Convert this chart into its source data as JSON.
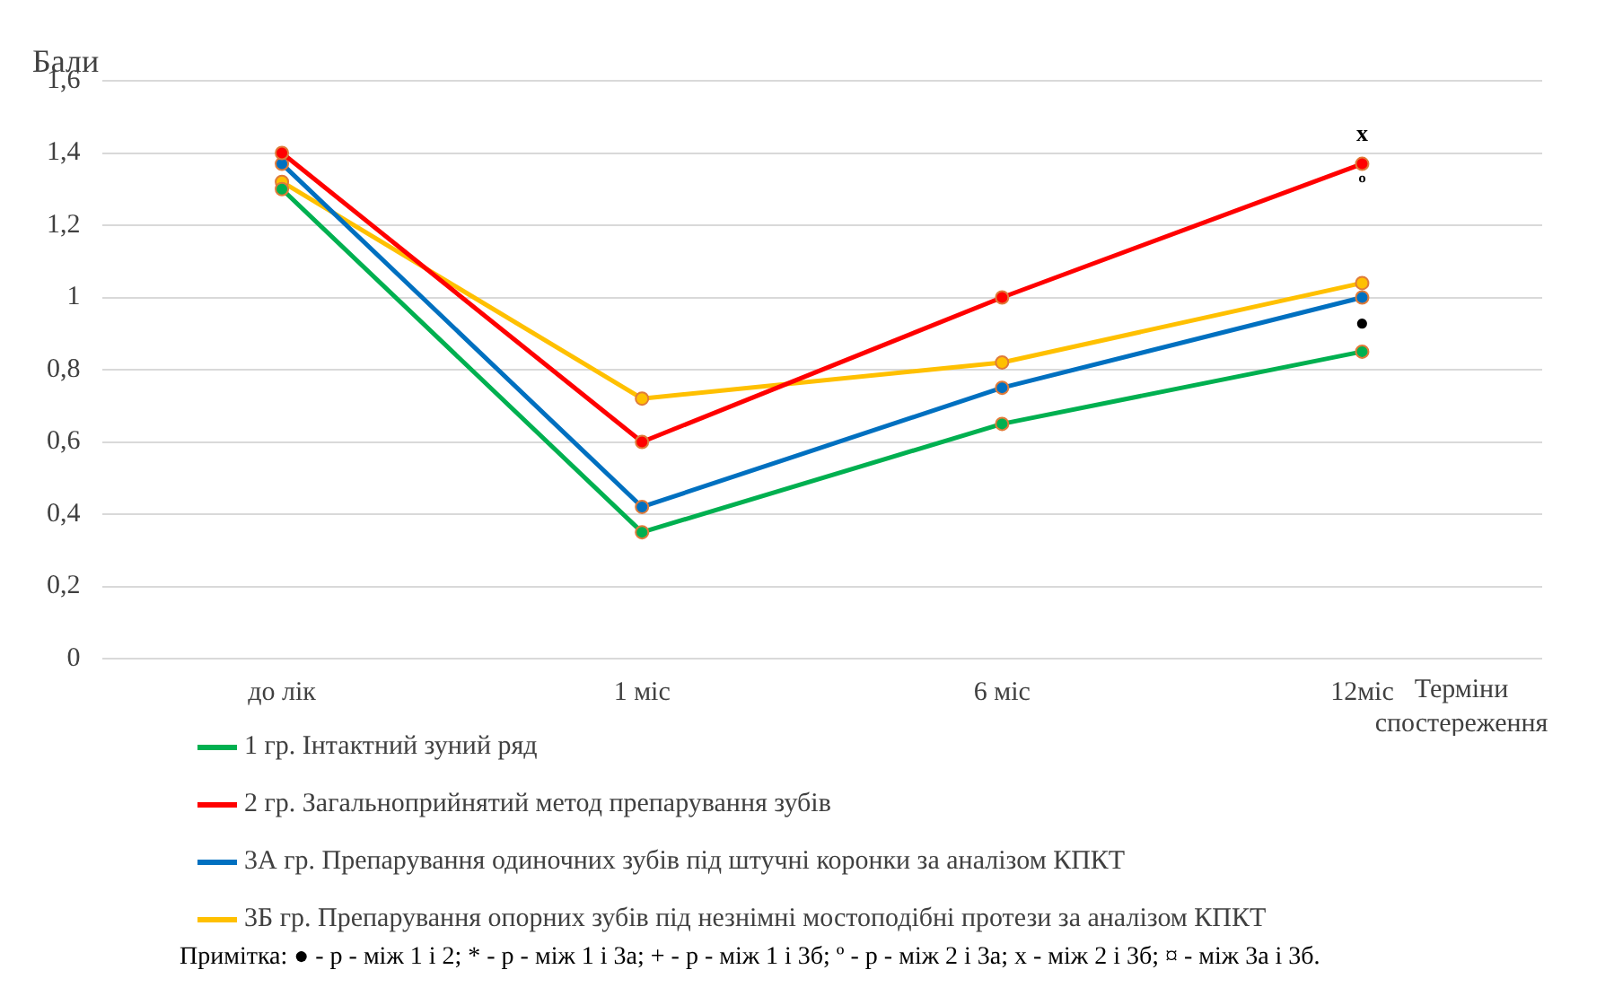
{
  "chart_data": {
    "type": "line",
    "ylabel": "Бали",
    "xlabel": "Терміни спостереження",
    "categories": [
      "до лік",
      "1 міс",
      "6 міс",
      "12міс"
    ],
    "series": [
      {
        "name": "1 гр. Інтактний зуний ряд",
        "color": "#00b050",
        "values": [
          1.3,
          0.35,
          0.65,
          0.85
        ]
      },
      {
        "name": "2 гр. Загальноприйнятий метод препарування зубів",
        "color": "#ff0000",
        "values": [
          1.4,
          0.6,
          1.0,
          1.37
        ]
      },
      {
        "name": "3А гр. Препарування одиночних зубів під штучні коронки за аналізом  КПКТ",
        "color": "#0070c0",
        "values": [
          1.37,
          0.42,
          0.75,
          1.0
        ]
      },
      {
        "name": "3Б гр. Препарування опорних зубів під незнімні мостоподібні протези за аналізом  КПКТ",
        "color": "#ffc000",
        "values": [
          1.32,
          0.72,
          0.82,
          1.04
        ]
      }
    ],
    "ylim": [
      0,
      1.6
    ],
    "yticks": [
      {
        "value": 0,
        "label": "0"
      },
      {
        "value": 0.2,
        "label": "0,2"
      },
      {
        "value": 0.4,
        "label": "0,4"
      },
      {
        "value": 0.6,
        "label": "0,6"
      },
      {
        "value": 0.8,
        "label": "0,8"
      },
      {
        "value": 1,
        "label": "1"
      },
      {
        "value": 1.2,
        "label": "1,2"
      },
      {
        "value": 1.4,
        "label": "1,4"
      },
      {
        "value": 1.6,
        "label": "1,6"
      }
    ],
    "grid": "y",
    "legend": "bottom",
    "marker": "circle",
    "line_style": "solid",
    "annotations": [
      "x",
      "º",
      "●",
      "Примітка: ● - р - між 1 і 2; * - р - між 1 і 3а;  + - р - між 1 і 3б; º - р - між 2 і 3а; x -  між 2 і 3б; ¤ - між 3а і 3б."
    ]
  }
}
